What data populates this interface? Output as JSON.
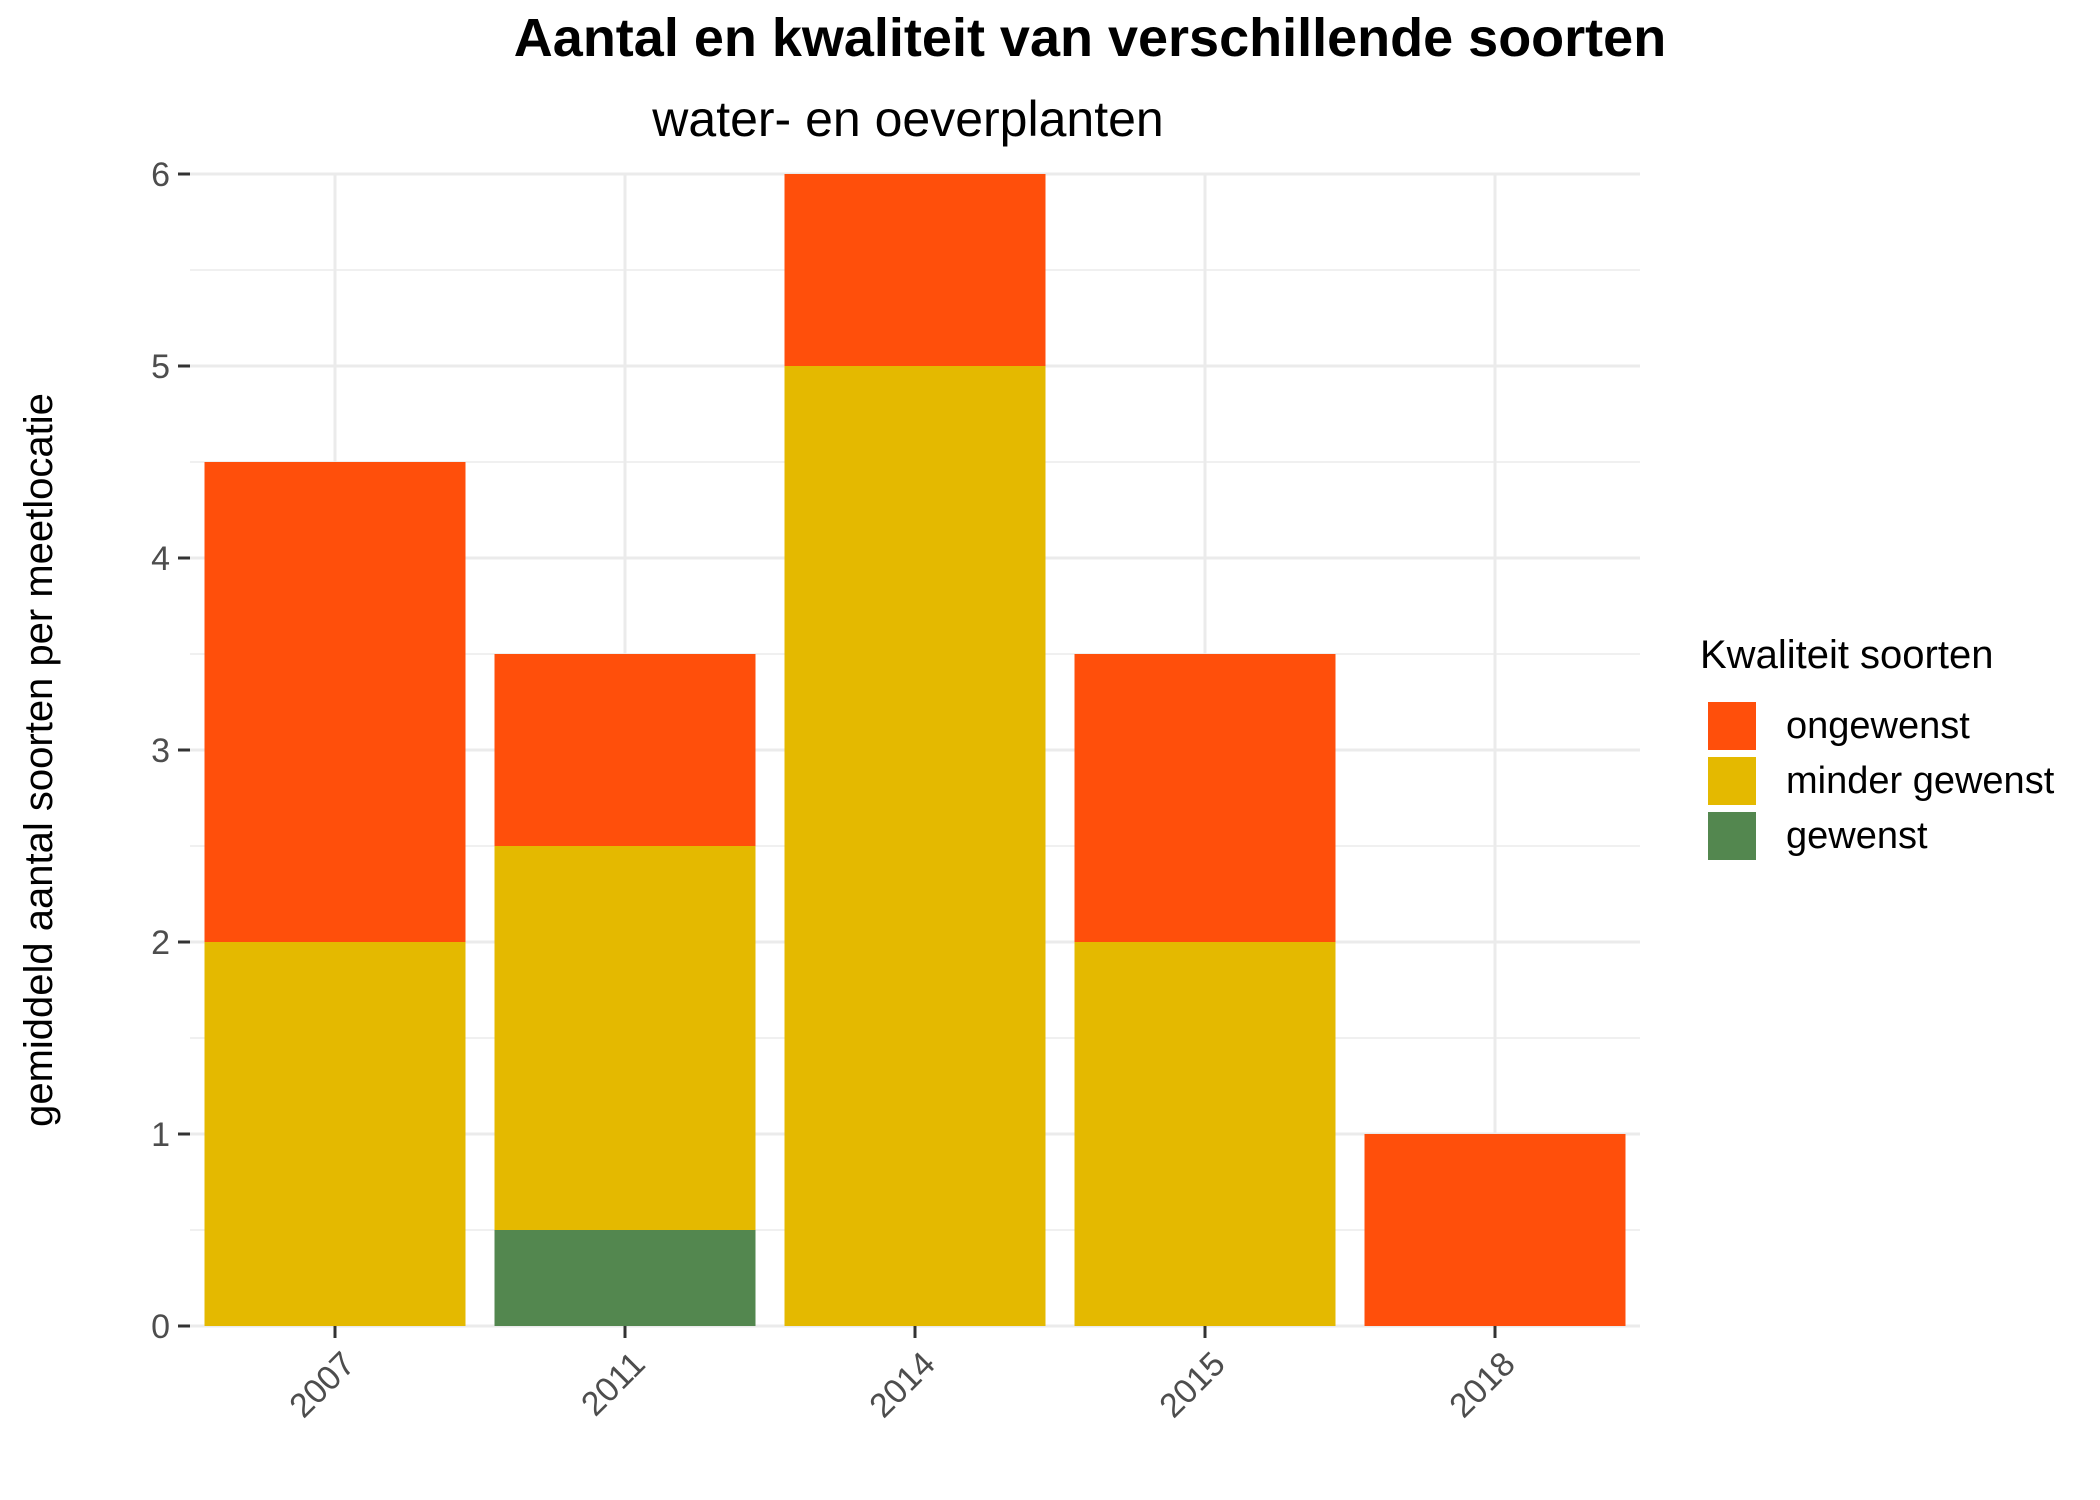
{
  "chart_data": {
    "type": "bar",
    "stacked": true,
    "title": "Aantal en kwaliteit van verschillende soorten",
    "subtitle": "water- en oeverplanten",
    "xlabel": "",
    "ylabel": "gemiddeld aantal soorten per meetlocatie",
    "categories": [
      "2007",
      "2011",
      "2014",
      "2015",
      "2018"
    ],
    "ylim": [
      0,
      6
    ],
    "yticks": [
      "0",
      "1",
      "2",
      "3",
      "4",
      "5",
      "6"
    ],
    "grid": true,
    "legend_position": "right",
    "legend_title": "Kwaliteit soorten",
    "series": [
      {
        "name": "gewenst",
        "color": "#53874f",
        "values": [
          0,
          0.5,
          0,
          0,
          0
        ]
      },
      {
        "name": "minder gewenst",
        "color": "#e4b900",
        "values": [
          2,
          2,
          5,
          2,
          0
        ]
      },
      {
        "name": "ongewenst",
        "color": "#ff4f0b",
        "values": [
          2.5,
          1,
          1,
          1.5,
          1
        ]
      }
    ],
    "legend_order": [
      "ongewenst",
      "minder gewenst",
      "gewenst"
    ]
  }
}
